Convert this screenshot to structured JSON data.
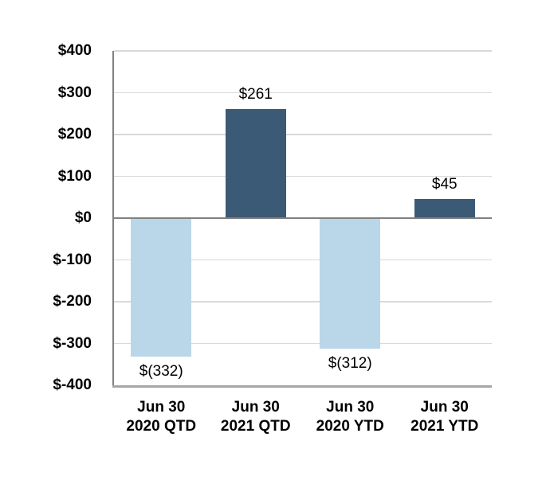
{
  "chart_data": {
    "type": "bar",
    "title": "",
    "xlabel": "",
    "ylabel": "",
    "categories": [
      [
        "Jun 30",
        "2020 QTD"
      ],
      [
        "Jun 30",
        "2021 QTD"
      ],
      [
        "Jun 30",
        "2020 YTD"
      ],
      [
        "Jun 30",
        "2021 YTD"
      ]
    ],
    "values": [
      -332,
      261,
      -312,
      45
    ],
    "value_labels": [
      "$(332)",
      "$261",
      "$(312)",
      "$45"
    ],
    "bar_colors": [
      "#BAD6E9",
      "#3B5A76",
      "#BAD6E9",
      "#3B5A76"
    ],
    "color_legend": {
      "negative_bar": "#BAD6E9",
      "positive_bar": "#3B5A76"
    },
    "y_ticks": [
      {
        "value": 400,
        "label": "$400"
      },
      {
        "value": 300,
        "label": "$300"
      },
      {
        "value": 200,
        "label": "$200"
      },
      {
        "value": 100,
        "label": "$100"
      },
      {
        "value": 0,
        "label": "$0"
      },
      {
        "value": -100,
        "label": "$-100"
      },
      {
        "value": -200,
        "label": "$-200"
      },
      {
        "value": -300,
        "label": "$-300"
      },
      {
        "value": -400,
        "label": "$-400"
      }
    ],
    "ylim": [
      -400,
      400
    ],
    "grid": true,
    "legend": null,
    "colors": {
      "background": "#FFFFFF",
      "gridline": "#D9D9D9",
      "zero_line": "#808080",
      "y_axis_line": "#808080",
      "x_axis_line": "#A6A6A6",
      "text": "#000000"
    }
  }
}
